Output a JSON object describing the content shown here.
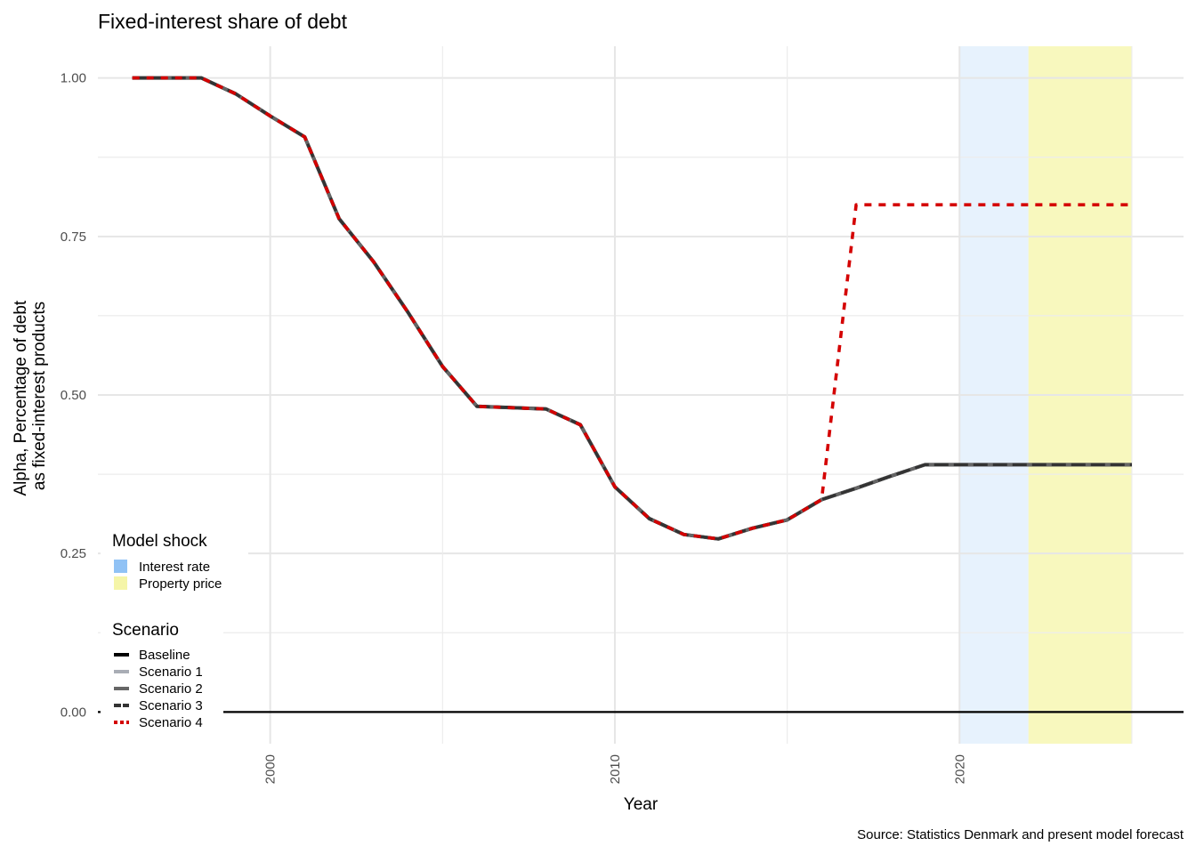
{
  "chart_data": {
    "type": "line",
    "title": "Fixed-interest share of debt",
    "xlabel": "Year",
    "ylabel_lines": [
      "Alpha, Percentage of debt",
      "as fixed-interest products"
    ],
    "caption": "Source: Statistics Denmark and present model forecast",
    "xlim": [
      1995,
      2026.5
    ],
    "ylim": [
      -0.05,
      1.05
    ],
    "x_ticks": [
      2000,
      2010,
      2020
    ],
    "x_tick_labels": [
      "2000",
      "2010",
      "2020"
    ],
    "y_ticks": [
      0,
      0.25,
      0.5,
      0.75,
      1.0
    ],
    "y_tick_labels": [
      "0.00",
      "0.25",
      "0.50",
      "0.75",
      "1.00"
    ],
    "grid": true,
    "shocks": [
      {
        "name": "Interest rate",
        "from": 2020,
        "to": 2022,
        "color": "#90c2f5"
      },
      {
        "name": "Property price",
        "from": 2022,
        "to": 2025,
        "color": "#f5f5a8"
      }
    ],
    "x": [
      1996,
      1997,
      1998,
      1999,
      2000,
      2001,
      2002,
      2003,
      2004,
      2005,
      2006,
      2007,
      2008,
      2009,
      2010,
      2011,
      2012,
      2013,
      2014,
      2015,
      2016,
      2017,
      2018,
      2019,
      2020,
      2021,
      2022,
      2023,
      2024,
      2025
    ],
    "series": [
      {
        "name": "Baseline",
        "color": "#000000",
        "dash": "solid",
        "values": [
          1.0,
          1.0,
          1.0,
          0.975,
          0.94,
          0.907,
          0.778,
          0.71,
          0.63,
          0.545,
          0.482,
          0.48,
          0.478,
          0.453,
          0.355,
          0.305,
          0.28,
          0.273,
          0.29,
          0.303,
          0.335,
          0.353,
          0.372,
          0.39,
          0.39,
          0.39,
          0.39,
          0.39,
          0.39,
          0.39
        ]
      },
      {
        "name": "Scenario 1",
        "color": "#a9adb5",
        "dash": "solid",
        "values": [
          1.0,
          1.0,
          1.0,
          0.975,
          0.94,
          0.907,
          0.778,
          0.71,
          0.63,
          0.545,
          0.482,
          0.48,
          0.478,
          0.453,
          0.355,
          0.305,
          0.28,
          0.273,
          0.29,
          0.303,
          0.335,
          0.353,
          0.372,
          0.39,
          0.39,
          0.39,
          0.39,
          0.39,
          0.39,
          0.39
        ]
      },
      {
        "name": "Scenario 2",
        "color": "#666666",
        "dash": "solid",
        "values": [
          1.0,
          1.0,
          1.0,
          0.975,
          0.94,
          0.907,
          0.778,
          0.71,
          0.63,
          0.545,
          0.482,
          0.48,
          0.478,
          0.453,
          0.355,
          0.305,
          0.28,
          0.273,
          0.29,
          0.303,
          0.335,
          0.353,
          0.372,
          0.39,
          0.39,
          0.39,
          0.39,
          0.39,
          0.39,
          0.39
        ]
      },
      {
        "name": "Scenario 3",
        "color": "#333333",
        "dash": "longdash",
        "values": [
          1.0,
          1.0,
          1.0,
          0.975,
          0.94,
          0.907,
          0.778,
          0.71,
          0.63,
          0.545,
          0.482,
          0.48,
          0.478,
          0.453,
          0.355,
          0.305,
          0.28,
          0.273,
          0.29,
          0.303,
          0.335,
          0.353,
          0.372,
          0.39,
          0.39,
          0.39,
          0.39,
          0.39,
          0.39,
          0.39
        ]
      },
      {
        "name": "Scenario 4",
        "color": "#d40000",
        "dash": "dashed",
        "values": [
          1.0,
          1.0,
          1.0,
          0.975,
          0.94,
          0.907,
          0.778,
          0.71,
          0.63,
          0.545,
          0.482,
          0.48,
          0.478,
          0.453,
          0.355,
          0.305,
          0.28,
          0.273,
          0.29,
          0.303,
          0.335,
          0.8,
          0.8,
          0.8,
          0.8,
          0.8,
          0.8,
          0.8,
          0.8,
          0.8
        ]
      }
    ],
    "hline": 0,
    "legend": {
      "position": "bottom-left",
      "shock_title": "Model shock",
      "scenario_title": "Scenario"
    }
  }
}
